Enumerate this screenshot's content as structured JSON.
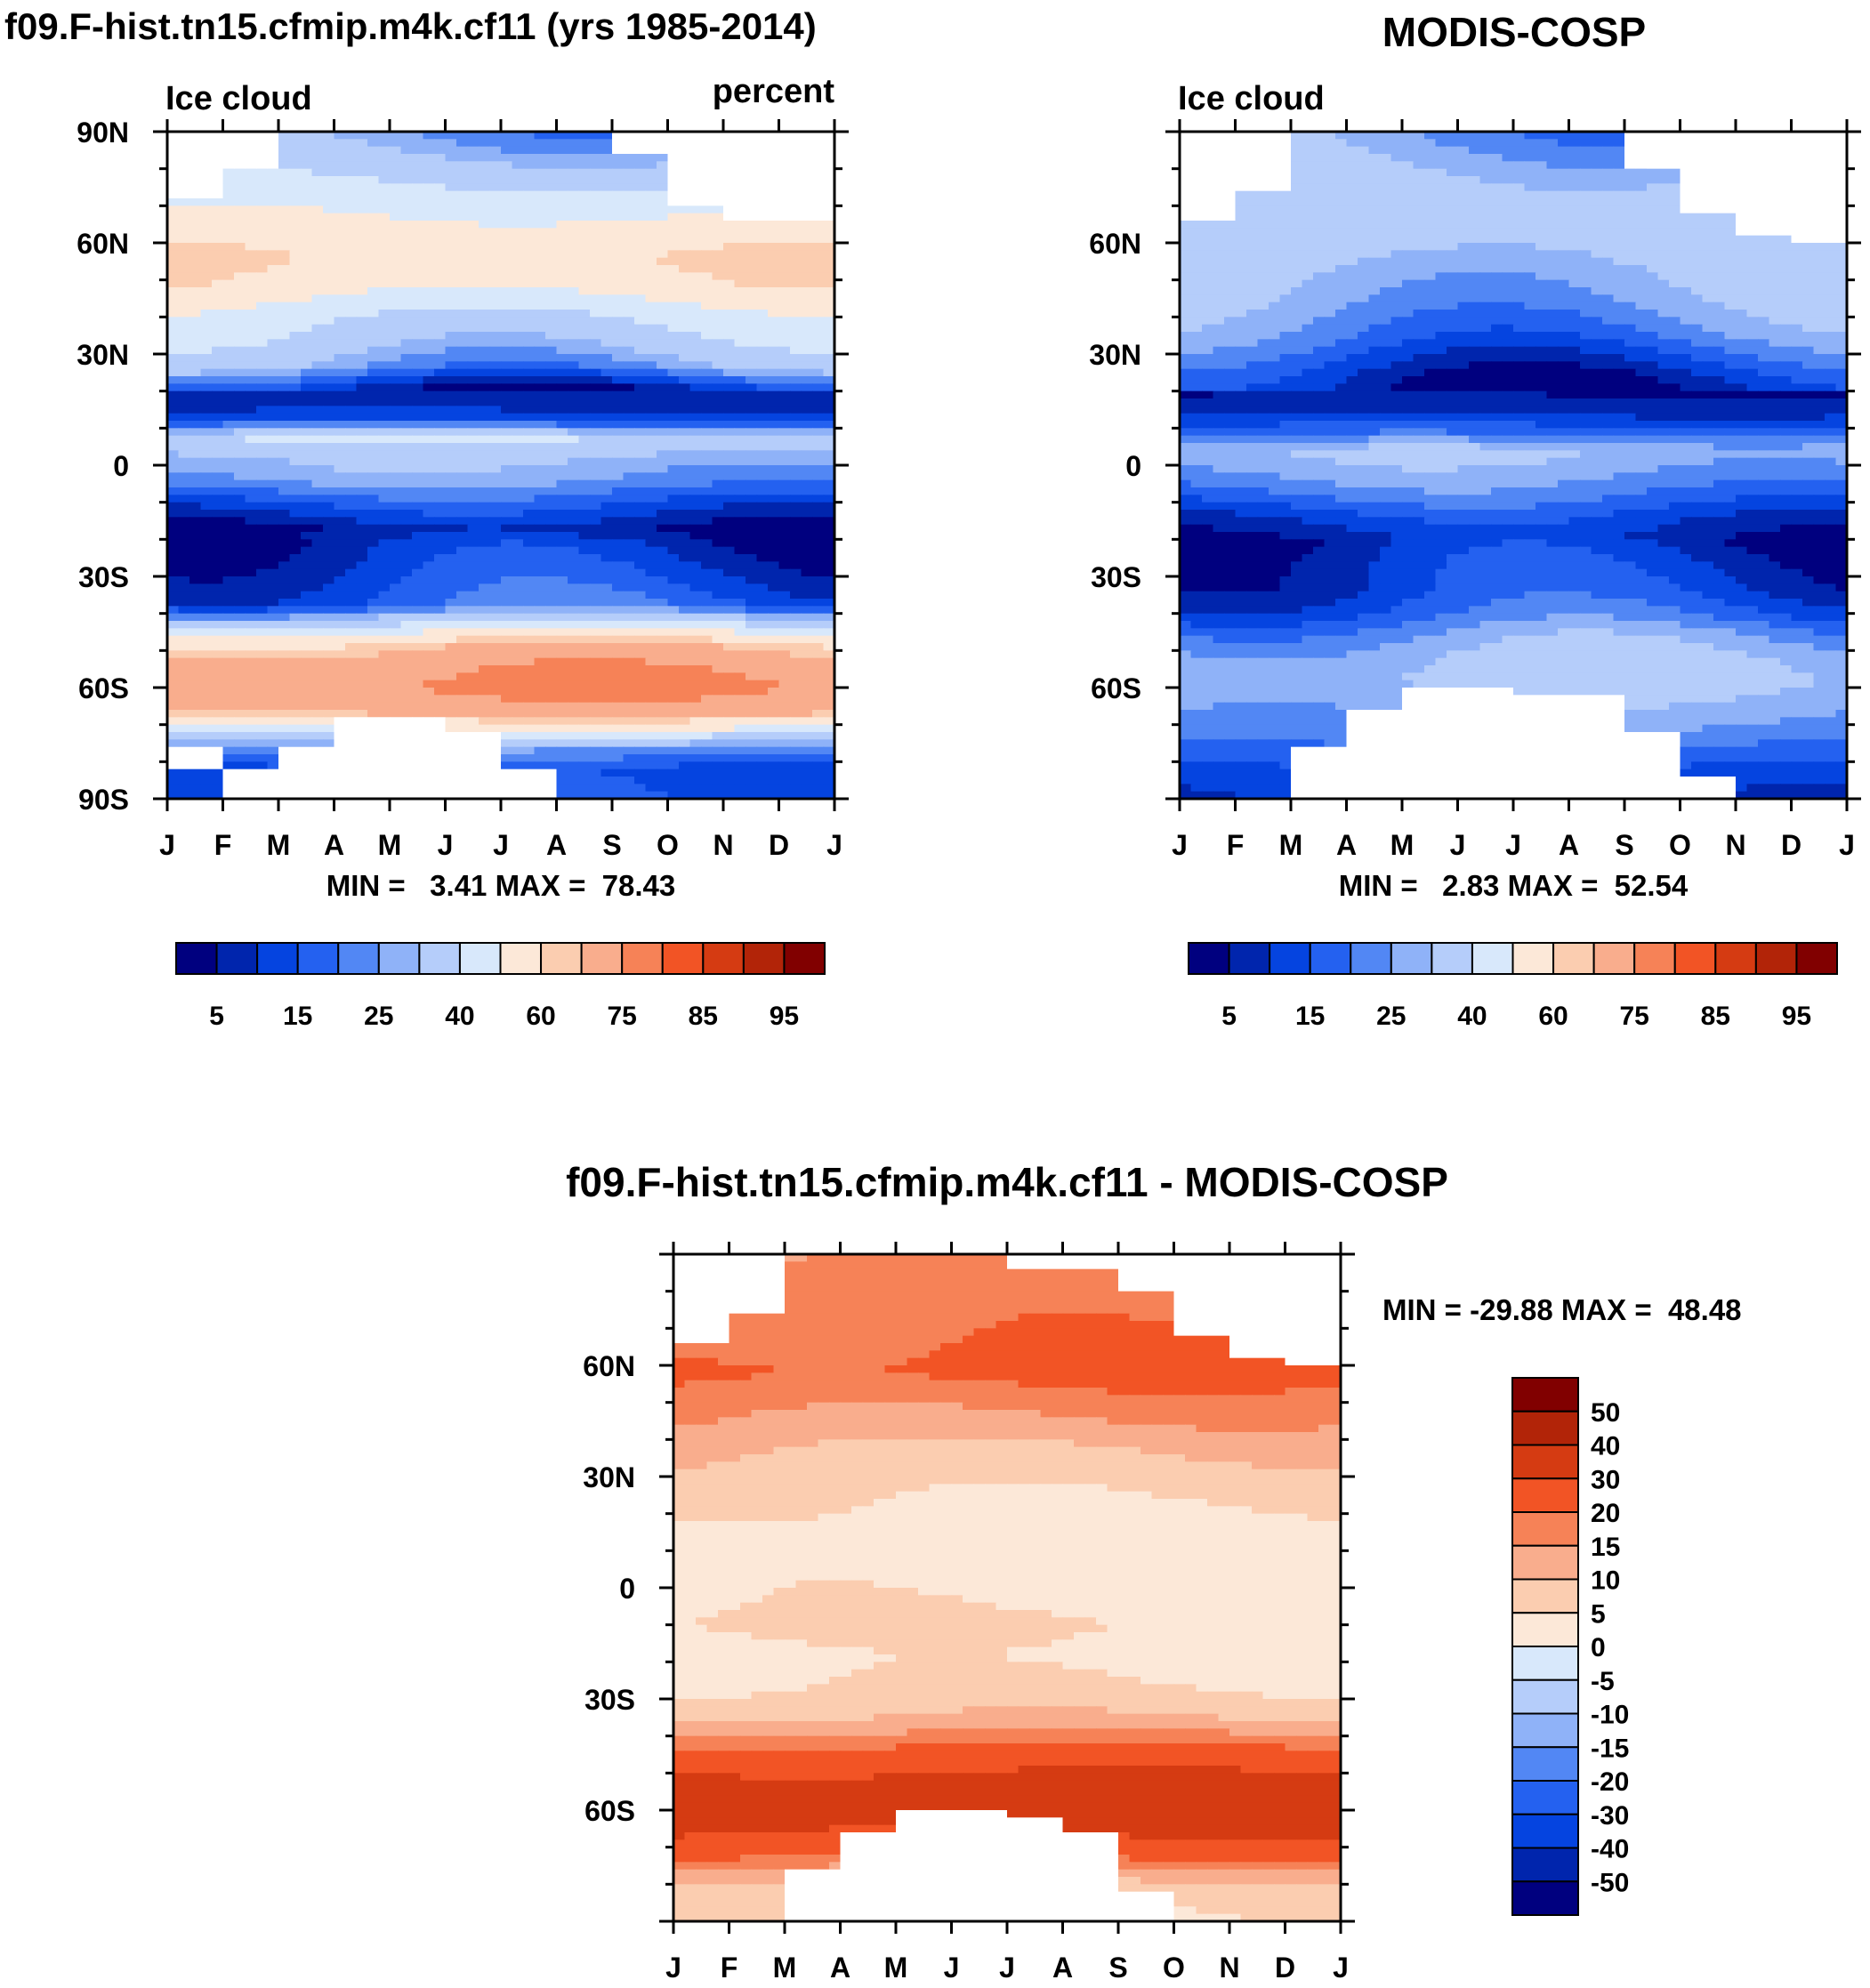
{
  "colors": {
    "abs_scale": [
      "#00007f",
      "#0025ad",
      "#0544e0",
      "#2461f0",
      "#5287f4",
      "#8fb2f8",
      "#b5cdfa",
      "#d8e8fb",
      "#fce8d8",
      "#fbcdb0",
      "#f9ad8d",
      "#f68257",
      "#f25425",
      "#d53b12",
      "#b22408",
      "#810000"
    ],
    "diff_scale": [
      "#00007f",
      "#0025ad",
      "#0544e0",
      "#2461f0",
      "#5287f4",
      "#8fb2f8",
      "#b5cdfa",
      "#d8e8fb",
      "#fce8d8",
      "#fbcdb0",
      "#f9ad8d",
      "#f68257",
      "#f25425",
      "#d53b12",
      "#b22408",
      "#810000"
    ]
  },
  "chart_data": [
    {
      "id": "model",
      "type": "heatmap",
      "title": "f09.F-hist.tn15.cfmip.m4k.cf11 (yrs 1985-2014)",
      "left_label": "Ice cloud",
      "right_label": "percent",
      "xlabels": [
        "J",
        "F",
        "M",
        "A",
        "M",
        "J",
        "J",
        "A",
        "S",
        "O",
        "N",
        "D",
        "J"
      ],
      "ylabels": [
        "90N",
        "60N",
        "30N",
        "0",
        "30S",
        "60S",
        "90S"
      ],
      "ylim": [
        -90,
        90
      ],
      "stats": "MIN =   3.41 MAX =  78.43",
      "colorbar": {
        "orientation": "horizontal",
        "labels": [
          "5",
          "15",
          "25",
          "40",
          "60",
          "75",
          "85",
          "95"
        ]
      },
      "lat_profile": [
        [
          -90,
          17
        ],
        [
          -82,
          14
        ],
        [
          -76,
          25
        ],
        [
          -70,
          55
        ],
        [
          -66,
          70
        ],
        [
          -60,
          76
        ],
        [
          -54,
          72
        ],
        [
          -48,
          62
        ],
        [
          -44,
          45
        ],
        [
          -38,
          17
        ],
        [
          -30,
          12
        ],
        [
          -22,
          8
        ],
        [
          -17,
          5
        ],
        [
          -10,
          15
        ],
        [
          -4,
          25
        ],
        [
          2,
          30
        ],
        [
          7,
          40
        ],
        [
          12,
          15
        ],
        [
          17,
          6
        ],
        [
          21,
          10
        ],
        [
          27,
          27
        ],
        [
          33,
          35
        ],
        [
          40,
          42
        ],
        [
          48,
          55
        ],
        [
          56,
          60
        ],
        [
          66,
          52
        ],
        [
          76,
          40
        ],
        [
          84,
          30
        ],
        [
          90,
          25
        ]
      ],
      "mask": [
        [
          0,
          1.0,
          -82,
          -76
        ],
        [
          1.0,
          2.0,
          -90,
          -82
        ],
        [
          2.0,
          3.0,
          -90,
          -76
        ],
        [
          3.0,
          5.0,
          -90,
          -68
        ],
        [
          5.0,
          6.0,
          -90,
          -72
        ],
        [
          6.0,
          7.0,
          -90,
          -82
        ],
        [
          0,
          1.0,
          72,
          90
        ],
        [
          1.0,
          2.0,
          80,
          90
        ],
        [
          8.0,
          9.0,
          84,
          90
        ],
        [
          9.0,
          10.0,
          70,
          90
        ],
        [
          10.0,
          12.0,
          66,
          90
        ]
      ]
    },
    {
      "id": "obs",
      "type": "heatmap",
      "title": "MODIS-COSP",
      "left_label": "Ice cloud",
      "xlabels": [
        "J",
        "F",
        "M",
        "A",
        "M",
        "J",
        "J",
        "A",
        "S",
        "O",
        "N",
        "D",
        "J"
      ],
      "ylabels": [
        "60N",
        "30N",
        "0",
        "30S",
        "60S"
      ],
      "ylim": [
        -90,
        90
      ],
      "stats": "MIN =   2.83 MAX =  52.54",
      "colorbar": {
        "orientation": "horizontal",
        "labels": [
          "5",
          "15",
          "25",
          "40",
          "60",
          "75",
          "85",
          "95"
        ]
      },
      "lat_profile": [
        [
          -90,
          12
        ],
        [
          -82,
          15
        ],
        [
          -76,
          20
        ],
        [
          -70,
          25
        ],
        [
          -64,
          28
        ],
        [
          -58,
          32
        ],
        [
          -52,
          30
        ],
        [
          -46,
          25
        ],
        [
          -40,
          17
        ],
        [
          -34,
          12
        ],
        [
          -26,
          10
        ],
        [
          -20,
          7
        ],
        [
          -14,
          12
        ],
        [
          -8,
          20
        ],
        [
          -2,
          26
        ],
        [
          4,
          30
        ],
        [
          9,
          18
        ],
        [
          14,
          9
        ],
        [
          19,
          5
        ],
        [
          25,
          10
        ],
        [
          30,
          16
        ],
        [
          36,
          22
        ],
        [
          44,
          27
        ],
        [
          52,
          30
        ],
        [
          62,
          35
        ],
        [
          72,
          35
        ],
        [
          80,
          30
        ],
        [
          88,
          25
        ]
      ],
      "mask": [
        [
          0,
          1.0,
          66,
          90
        ],
        [
          1.0,
          2.0,
          74,
          90
        ],
        [
          2.0,
          3.0,
          -90,
          -76
        ],
        [
          3.0,
          4.0,
          -90,
          -66
        ],
        [
          4.0,
          6.0,
          -90,
          -60
        ],
        [
          6.0,
          8.0,
          -90,
          -62
        ],
        [
          8.0,
          9.0,
          -90,
          -72
        ],
        [
          9.0,
          10.0,
          -90,
          -84
        ],
        [
          8.0,
          9.0,
          80,
          90
        ],
        [
          9.0,
          10.0,
          68,
          90
        ],
        [
          10.0,
          11.0,
          62,
          90
        ],
        [
          11.0,
          12.0,
          60,
          90
        ]
      ]
    },
    {
      "id": "diff",
      "type": "heatmap",
      "title": "f09.F-hist.tn15.cfmip.m4k.cf11 - MODIS-COSP",
      "xlabels": [
        "J",
        "F",
        "M",
        "A",
        "M",
        "J",
        "J",
        "A",
        "S",
        "O",
        "N",
        "D",
        "J"
      ],
      "ylabels": [
        "60N",
        "30N",
        "0",
        "30S",
        "60S"
      ],
      "ylim": [
        -90,
        90
      ],
      "stats": "MIN = -29.88 MAX =  48.48",
      "colorbar": {
        "orientation": "vertical",
        "labels": [
          "50",
          "40",
          "30",
          "20",
          "15",
          "10",
          "5",
          "0",
          "-5",
          "-10",
          "-15",
          "-20",
          "-30",
          "-40",
          "-50"
        ]
      },
      "lat_profile": [
        [
          -90,
          4
        ],
        [
          -82,
          6
        ],
        [
          -76,
          14
        ],
        [
          -70,
          25
        ],
        [
          -64,
          33
        ],
        [
          -58,
          38
        ],
        [
          -52,
          33
        ],
        [
          -46,
          25
        ],
        [
          -40,
          16
        ],
        [
          -34,
          9
        ],
        [
          -26,
          5
        ],
        [
          -18,
          3
        ],
        [
          -10,
          6
        ],
        [
          -4,
          4
        ],
        [
          2,
          3
        ],
        [
          8,
          3
        ],
        [
          14,
          2
        ],
        [
          20,
          4
        ],
        [
          26,
          6
        ],
        [
          32,
          8
        ],
        [
          38,
          10
        ],
        [
          44,
          14
        ],
        [
          52,
          18
        ],
        [
          58,
          22
        ],
        [
          66,
          20
        ],
        [
          74,
          18
        ],
        [
          82,
          17
        ],
        [
          90,
          15
        ]
      ],
      "mask": [
        [
          0,
          1.0,
          66,
          90
        ],
        [
          1.0,
          2.0,
          74,
          90
        ],
        [
          2.0,
          3.0,
          -90,
          -76
        ],
        [
          3.0,
          4.0,
          -90,
          -66
        ],
        [
          4.0,
          6.0,
          -90,
          -60
        ],
        [
          6.0,
          7.0,
          -90,
          -62
        ],
        [
          7.0,
          8.0,
          -90,
          -66
        ],
        [
          8.0,
          9.0,
          -90,
          -82
        ],
        [
          0,
          2.0,
          80,
          90
        ],
        [
          6.0,
          8.0,
          86,
          90
        ],
        [
          8.0,
          9.0,
          80,
          90
        ],
        [
          9.0,
          10.0,
          68,
          90
        ],
        [
          10.0,
          11.0,
          62,
          90
        ],
        [
          11.0,
          12.0,
          60,
          90
        ]
      ]
    }
  ]
}
